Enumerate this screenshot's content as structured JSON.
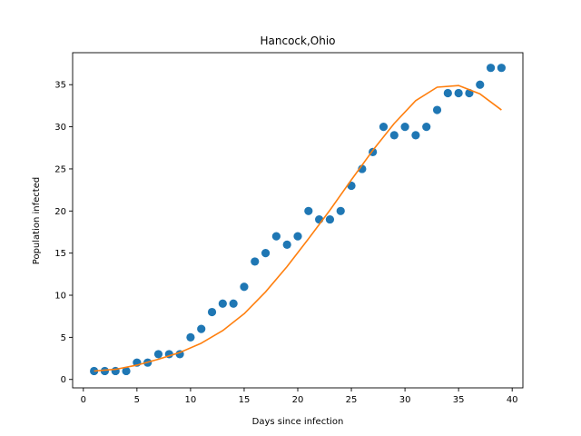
{
  "chart_data": {
    "type": "scatter",
    "title": "Hancock,Ohio",
    "xlabel": "Days since infection",
    "ylabel": "Population infected",
    "xlim": [
      -1,
      41
    ],
    "ylim": [
      -1,
      38.8
    ],
    "xticks": [
      0,
      5,
      10,
      15,
      20,
      25,
      30,
      35,
      40
    ],
    "yticks": [
      0,
      5,
      10,
      15,
      20,
      25,
      30,
      35
    ],
    "grid": false,
    "colors": {
      "points": "#1f77b4",
      "fit": "#ff7f0e"
    },
    "series": [
      {
        "kind": "scatter",
        "x": [
          1,
          2,
          3,
          4,
          5,
          6,
          7,
          8,
          9,
          10,
          11,
          12,
          13,
          14,
          15,
          16,
          17,
          18,
          19,
          20,
          21,
          22,
          23,
          24,
          25,
          26,
          27,
          28,
          29,
          30,
          31,
          32,
          33,
          34,
          35,
          36,
          37,
          38,
          39
        ],
        "y": [
          1,
          1,
          1,
          1,
          2,
          2,
          3,
          3,
          3,
          5,
          6,
          8,
          9,
          9,
          11,
          14,
          15,
          17,
          16,
          17,
          20,
          19,
          19,
          20,
          23,
          25,
          27,
          30,
          29,
          30,
          29,
          30,
          32,
          34,
          34,
          34,
          35,
          37,
          37
        ]
      },
      {
        "kind": "line",
        "x": [
          1,
          3,
          5,
          7,
          9,
          11,
          13,
          15,
          17,
          19,
          21,
          23,
          25,
          27,
          29,
          31,
          33,
          35,
          37,
          39
        ],
        "y": [
          1.0,
          1.2,
          1.7,
          2.4,
          3.2,
          4.3,
          5.8,
          7.8,
          10.4,
          13.4,
          16.7,
          20.1,
          23.7,
          27.2,
          30.4,
          33.1,
          34.7,
          34.9,
          33.9,
          32.0
        ]
      }
    ]
  }
}
